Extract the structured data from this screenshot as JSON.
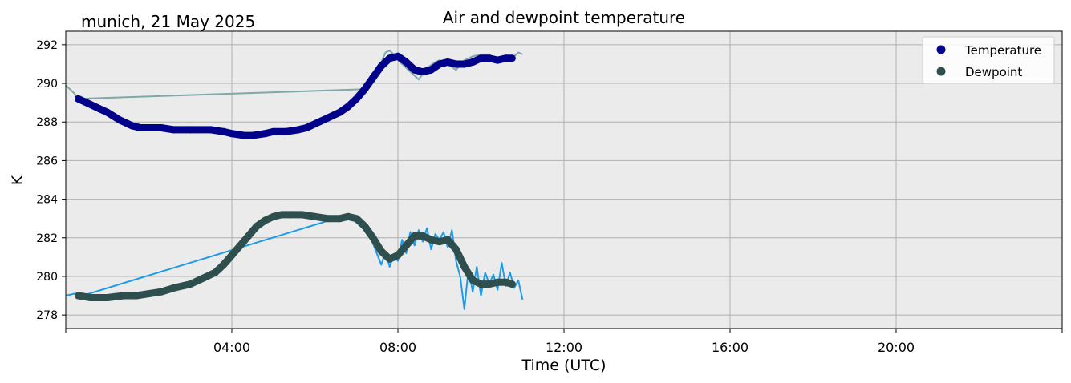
{
  "chart_data": {
    "type": "line",
    "title": "Air and dewpoint temperature",
    "subtitle": "munich, 21 May 2025",
    "xlabel": "Time (UTC)",
    "ylabel": "K",
    "xlim": [
      0,
      24
    ],
    "ylim": [
      277.3,
      292.7
    ],
    "x_ticks": [
      4,
      8,
      12,
      16,
      20
    ],
    "x_tick_labels": [
      "04:00",
      "08:00",
      "12:00",
      "16:00",
      "20:00"
    ],
    "y_ticks": [
      278,
      280,
      282,
      284,
      286,
      288,
      290,
      292
    ],
    "y_tick_labels": [
      "278",
      "280",
      "282",
      "284",
      "286",
      "288",
      "290",
      "292"
    ],
    "grid": true,
    "legend_position": "top-right",
    "colors": {
      "temperature": "#00008b",
      "dewpoint": "#2f4f4f",
      "temperature_raw": "#7fa8a8",
      "dewpoint_raw": "#1e9be8",
      "plot_background": "#ebebeb",
      "grid": "#b0b0b0"
    },
    "series": [
      {
        "name": "Temperature",
        "key": "temperature",
        "x": [
          0.3,
          0.5,
          0.8,
          1.0,
          1.3,
          1.6,
          1.8,
          2.0,
          2.3,
          2.6,
          3.0,
          3.5,
          3.8,
          4.0,
          4.3,
          4.5,
          4.8,
          5.0,
          5.3,
          5.6,
          5.8,
          6.0,
          6.3,
          6.6,
          6.8,
          7.0,
          7.2,
          7.4,
          7.6,
          7.8,
          8.0,
          8.2,
          8.4,
          8.6,
          8.8,
          9.0,
          9.2,
          9.4,
          9.6,
          9.8,
          10.0,
          10.2,
          10.4,
          10.6,
          10.75
        ],
        "y": [
          289.2,
          289.0,
          288.7,
          288.5,
          288.1,
          287.8,
          287.7,
          287.7,
          287.7,
          287.6,
          287.6,
          287.6,
          287.5,
          287.4,
          287.3,
          287.3,
          287.4,
          287.5,
          287.5,
          287.6,
          287.7,
          287.9,
          288.2,
          288.5,
          288.8,
          289.2,
          289.7,
          290.3,
          290.9,
          291.3,
          291.4,
          291.1,
          290.7,
          290.6,
          290.7,
          291.0,
          291.1,
          291.0,
          291.0,
          291.1,
          291.3,
          291.3,
          291.2,
          291.3,
          291.3
        ]
      },
      {
        "name": "Dewpoint",
        "key": "dewpoint",
        "x": [
          0.3,
          0.6,
          1.0,
          1.4,
          1.7,
          2.0,
          2.3,
          2.6,
          3.0,
          3.3,
          3.6,
          3.8,
          4.0,
          4.2,
          4.4,
          4.6,
          4.8,
          5.0,
          5.2,
          5.4,
          5.7,
          6.0,
          6.3,
          6.6,
          6.8,
          7.0,
          7.2,
          7.4,
          7.6,
          7.8,
          8.0,
          8.2,
          8.4,
          8.6,
          8.8,
          9.0,
          9.2,
          9.4,
          9.6,
          9.8,
          10.0,
          10.2,
          10.4,
          10.6,
          10.75
        ],
        "y": [
          279.0,
          278.9,
          278.9,
          279.0,
          279.0,
          279.1,
          279.2,
          279.4,
          279.6,
          279.9,
          280.2,
          280.6,
          281.1,
          281.6,
          282.1,
          282.6,
          282.9,
          283.1,
          283.2,
          283.2,
          283.2,
          283.1,
          283.0,
          283.0,
          283.1,
          283.0,
          282.6,
          282.0,
          281.3,
          280.9,
          281.1,
          281.6,
          282.1,
          282.1,
          281.9,
          281.8,
          281.9,
          281.4,
          280.5,
          279.8,
          279.6,
          279.6,
          279.7,
          279.7,
          279.6
        ]
      }
    ],
    "raw_series": [
      {
        "key": "temperature_raw",
        "x": [
          0.0,
          0.1,
          0.2,
          0.3,
          7.2,
          7.4,
          7.6,
          7.7,
          7.8,
          7.9,
          8.0,
          8.2,
          8.4,
          8.5,
          8.6,
          8.7,
          8.9,
          9.0,
          9.2,
          9.4,
          9.6,
          9.8,
          10.0,
          10.2,
          10.4,
          10.6,
          10.8,
          10.9,
          11.0
        ],
        "y": [
          289.9,
          289.7,
          289.5,
          289.2,
          289.7,
          290.3,
          291.1,
          291.6,
          291.7,
          291.5,
          291.2,
          290.8,
          290.4,
          290.2,
          290.5,
          290.8,
          291.1,
          291.2,
          291.0,
          290.7,
          291.2,
          291.4,
          291.5,
          291.5,
          291.1,
          291.3,
          291.4,
          291.6,
          291.5
        ]
      },
      {
        "key": "dewpoint_raw",
        "x": [
          0.0,
          0.2,
          0.4,
          6.8,
          7.0,
          7.2,
          7.4,
          7.6,
          7.7,
          7.8,
          7.9,
          8.0,
          8.1,
          8.2,
          8.3,
          8.4,
          8.5,
          8.6,
          8.7,
          8.8,
          8.9,
          9.0,
          9.1,
          9.2,
          9.3,
          9.4,
          9.5,
          9.6,
          9.7,
          9.8,
          9.9,
          10.0,
          10.1,
          10.2,
          10.3,
          10.4,
          10.5,
          10.6,
          10.7,
          10.8,
          10.9,
          11.0
        ],
        "y": [
          279.0,
          279.1,
          279.0,
          283.2,
          283.0,
          282.6,
          281.7,
          280.6,
          281.3,
          280.5,
          281.1,
          280.8,
          281.9,
          281.2,
          282.3,
          281.6,
          282.4,
          281.8,
          282.5,
          281.4,
          282.2,
          281.9,
          282.3,
          281.5,
          282.4,
          280.8,
          280.0,
          278.3,
          280.4,
          279.2,
          280.5,
          279.0,
          280.2,
          279.6,
          280.1,
          279.3,
          280.7,
          279.5,
          280.2,
          279.4,
          279.8,
          278.8
        ]
      }
    ]
  }
}
